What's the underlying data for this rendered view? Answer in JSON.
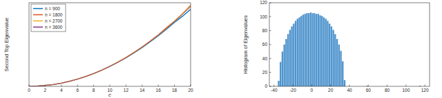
{
  "chart_data": [
    {
      "type": "line",
      "xlabel": "c",
      "ylabel": "Second Top Eigenvalue",
      "x": [
        0,
        1,
        2,
        3,
        4,
        5,
        6,
        7,
        8,
        9,
        10,
        11,
        12,
        13,
        14,
        15,
        16,
        17,
        18,
        19,
        20
      ],
      "series": [
        {
          "name": "n = 900",
          "color": "#0072bd",
          "values": [
            2,
            8,
            25,
            50,
            88,
            138,
            198,
            270,
            352,
            445,
            550,
            662,
            785,
            922,
            1068,
            1225,
            1390,
            1570,
            1760,
            1930,
            2120
          ]
        },
        {
          "name": "n = 1800",
          "color": "#d95319",
          "values": [
            2,
            8,
            25,
            51,
            89,
            139,
            199,
            271,
            353,
            447,
            552,
            668,
            795,
            935,
            1085,
            1248,
            1420,
            1610,
            1795,
            2000,
            2230
          ]
        },
        {
          "name": "n = 2700",
          "color": "#edb120",
          "values": [
            2,
            8,
            25,
            50,
            88,
            138,
            198,
            270,
            352,
            446,
            551,
            666,
            791,
            931,
            1080,
            1240,
            1410,
            1592,
            1785,
            1990,
            2210
          ]
        },
        {
          "name": "n = 3600",
          "color": "#7e2f8e",
          "values": [
            2,
            8,
            25,
            50,
            88,
            138,
            198,
            270,
            352,
            445,
            550,
            665,
            790,
            930,
            1078,
            1238,
            1408,
            1590,
            1780,
            1985,
            2190
          ]
        }
      ],
      "xlim": [
        0,
        20
      ],
      "xticks": [
        0,
        2,
        4,
        6,
        8,
        10,
        12,
        14,
        16,
        18,
        20
      ],
      "ylim": [
        0,
        2300
      ],
      "tick_labels": "x",
      "legend": "upper left",
      "grid": false
    },
    {
      "type": "histogram",
      "ylabel": "Histogram of Eigenvalues",
      "color": "#4f94cd",
      "bins": [
        -36,
        -34,
        -32,
        -30,
        -28,
        -26,
        -24,
        -22,
        -20,
        -18,
        -16,
        -14,
        -12,
        -10,
        -8,
        -6,
        -4,
        -2,
        0,
        2,
        4,
        6,
        8,
        10,
        12,
        14,
        16,
        18,
        20,
        22,
        24,
        26,
        28,
        30,
        32,
        34,
        36,
        38,
        40,
        42,
        44,
        46,
        48,
        50,
        52,
        54,
        56,
        58,
        60,
        62,
        64,
        66,
        68,
        70,
        72,
        74,
        76,
        78,
        80,
        82,
        84,
        86,
        88,
        90,
        92,
        94,
        96,
        98,
        100,
        102,
        104,
        106,
        108,
        110,
        112,
        114,
        116,
        118
      ],
      "values": [
        8,
        35,
        50,
        60,
        68,
        75,
        81,
        86,
        90,
        94,
        97,
        99,
        101,
        103,
        104,
        105,
        105,
        106,
        105,
        105,
        104,
        104,
        102,
        101,
        99,
        97,
        94,
        90,
        86,
        81,
        75,
        68,
        60,
        51,
        36,
        9,
        0,
        0,
        0,
        0,
        0,
        0,
        0,
        0,
        0,
        0,
        0,
        1,
        0,
        0,
        0,
        0,
        0,
        0,
        0,
        0,
        0,
        0,
        0,
        0,
        0,
        0,
        0,
        0,
        0,
        0,
        0,
        0,
        0,
        0,
        0,
        0,
        0,
        0,
        0,
        1,
        0
      ],
      "xlim": [
        -45,
        125
      ],
      "xticks": [
        -40,
        -20,
        0,
        20,
        40,
        60,
        80,
        100,
        120
      ],
      "ylim": [
        0,
        120
      ],
      "yticks": [
        0,
        20,
        40,
        60,
        80,
        100,
        120
      ],
      "grid": false
    }
  ]
}
